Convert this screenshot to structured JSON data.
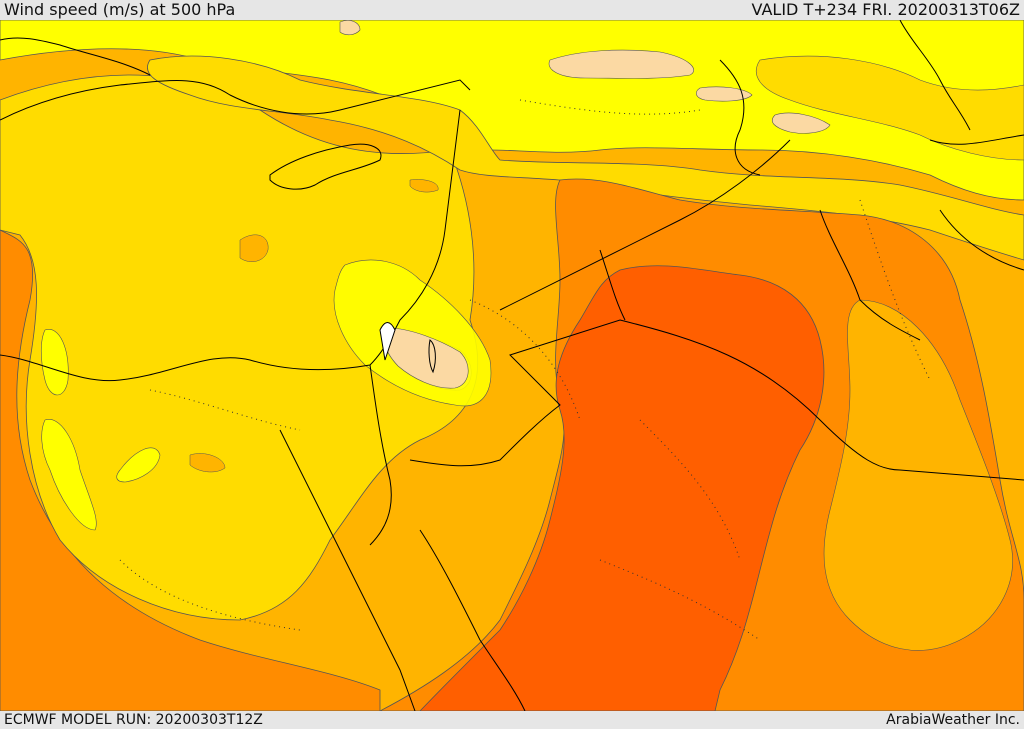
{
  "header": {
    "title": "Wind speed (m/s) at 500 hPa",
    "valid": "VALID T+234 FRI. 20200313T06Z"
  },
  "footer": {
    "model_run": "ECMWF MODEL RUN: 20200303T12Z",
    "credit": "ArabiaWeather Inc."
  },
  "map": {
    "variable": "wind speed",
    "level": "500 hPa",
    "colors": {
      "light_peach": "#fbd9a3",
      "yellow": "#ffff00",
      "gold": "#ffdc00",
      "amber": "#ffb400",
      "orange": "#ff8c00",
      "deep_orange": "#ff5f00",
      "outline": "#555555",
      "border": "#000000"
    }
  }
}
